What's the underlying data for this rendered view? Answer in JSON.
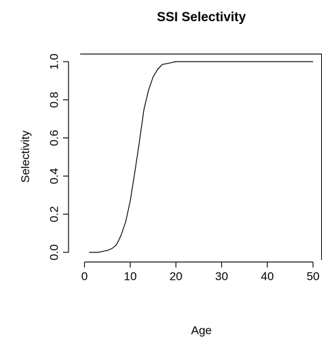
{
  "chart_data": {
    "type": "line",
    "title": "SSI Selectivity",
    "x_label": "Age",
    "y_label": "Selectivity",
    "x": [
      1,
      2,
      3,
      4,
      5,
      6,
      7,
      8,
      9,
      10,
      11,
      12,
      13,
      14,
      15,
      16,
      17,
      18,
      19,
      20,
      21,
      22,
      23,
      24,
      25,
      26,
      27,
      28,
      29,
      30,
      31,
      32,
      33,
      34,
      35,
      36,
      37,
      38,
      39,
      40,
      41,
      42,
      43,
      44,
      45,
      46,
      47,
      48,
      49,
      50
    ],
    "series": [
      {
        "name": "Selectivity",
        "color": "#000000",
        "values": [
          0,
          0,
          0,
          0.005,
          0.01,
          0.02,
          0.04,
          0.09,
          0.16,
          0.27,
          0.42,
          0.58,
          0.75,
          0.85,
          0.92,
          0.96,
          0.985,
          0.99,
          0.995,
          1,
          1,
          1,
          1,
          1,
          1,
          1,
          1,
          1,
          1,
          1,
          1,
          1,
          1,
          1,
          1,
          1,
          1,
          1,
          1,
          1,
          1,
          1,
          1,
          1,
          1,
          1,
          1,
          1,
          1,
          1
        ]
      }
    ],
    "xlim": [
      -0.96,
      51.96
    ],
    "ylim": [
      -0.04,
      1.04
    ],
    "xticks": [
      0,
      10,
      20,
      30,
      40,
      50
    ],
    "yticks": [
      {
        "value": 0,
        "label": "0.0"
      },
      {
        "value": 0.2,
        "label": "0.2"
      },
      {
        "value": 0.4,
        "label": "0.4"
      },
      {
        "value": 0.6,
        "label": "0.6"
      },
      {
        "value": 0.8,
        "label": "0.8"
      },
      {
        "value": 1,
        "label": "1.0"
      }
    ],
    "grid": false
  }
}
